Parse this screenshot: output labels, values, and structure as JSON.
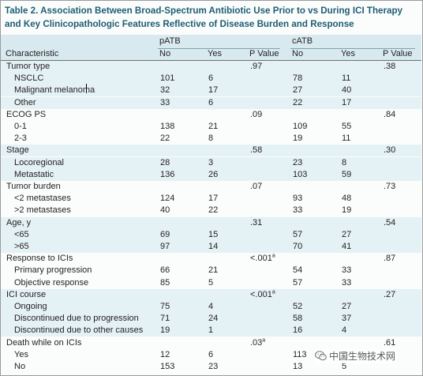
{
  "title_line1": "Table 2. Association Between Broad-Spectrum Antibiotic Use Prior to vs During ICI Therapy",
  "title_line2": "and Key Clinicopathologic Features Reflective of Disease Burden and Response",
  "groups": {
    "patb": "pATB",
    "catb": "cATB"
  },
  "columns": {
    "characteristic": "Characteristic",
    "patb_no": "No",
    "patb_yes": "Yes",
    "patb_p": "P Value",
    "catb_no": "No",
    "catb_yes": "Yes",
    "catb_p": "P Value"
  },
  "rows": [
    {
      "label": "Tumor type",
      "level": 0,
      "pno": "",
      "pyes": "",
      "pp": ".97",
      "pp_sup": "",
      "cno": "",
      "cyes": "",
      "cp": ".38",
      "cp_sup": ""
    },
    {
      "label": "NSCLC",
      "level": 1,
      "pno": "101",
      "pyes": "6",
      "pp": "",
      "pp_sup": "",
      "cno": "78",
      "cyes": "11",
      "cp": "",
      "cp_sup": ""
    },
    {
      "label": "Malignant melanoma",
      "level": 1,
      "pno": "32",
      "pyes": "17",
      "pp": "",
      "pp_sup": "",
      "cno": "27",
      "cyes": "40",
      "cp": "",
      "cp_sup": ""
    },
    {
      "label": "Other",
      "level": 1,
      "pno": "33",
      "pyes": "6",
      "pp": "",
      "pp_sup": "",
      "cno": "22",
      "cyes": "17",
      "cp": "",
      "cp_sup": ""
    },
    {
      "label": "ECOG PS",
      "level": 0,
      "pno": "",
      "pyes": "",
      "pp": ".09",
      "pp_sup": "",
      "cno": "",
      "cyes": "",
      "cp": ".84",
      "cp_sup": ""
    },
    {
      "label": "0-1",
      "level": 1,
      "pno": "138",
      "pyes": "21",
      "pp": "",
      "pp_sup": "",
      "cno": "109",
      "cyes": "55",
      "cp": "",
      "cp_sup": ""
    },
    {
      "label": "2-3",
      "level": 1,
      "pno": "22",
      "pyes": "8",
      "pp": "",
      "pp_sup": "",
      "cno": "19",
      "cyes": "11",
      "cp": "",
      "cp_sup": ""
    },
    {
      "label": "Stage",
      "level": 0,
      "pno": "",
      "pyes": "",
      "pp": ".58",
      "pp_sup": "",
      "cno": "",
      "cyes": "",
      "cp": ".30",
      "cp_sup": ""
    },
    {
      "label": "Locoregional",
      "level": 1,
      "pno": "28",
      "pyes": "3",
      "pp": "",
      "pp_sup": "",
      "cno": "23",
      "cyes": "8",
      "cp": "",
      "cp_sup": ""
    },
    {
      "label": "Metastatic",
      "level": 1,
      "pno": "136",
      "pyes": "26",
      "pp": "",
      "pp_sup": "",
      "cno": "103",
      "cyes": "59",
      "cp": "",
      "cp_sup": ""
    },
    {
      "label": "Tumor burden",
      "level": 0,
      "pno": "",
      "pyes": "",
      "pp": ".07",
      "pp_sup": "",
      "cno": "",
      "cyes": "",
      "cp": ".73",
      "cp_sup": ""
    },
    {
      "label": "<2 metastases",
      "level": 1,
      "pno": "124",
      "pyes": "17",
      "pp": "",
      "pp_sup": "",
      "cno": "93",
      "cyes": "48",
      "cp": "",
      "cp_sup": ""
    },
    {
      "label": ">2 metastases",
      "level": 1,
      "pno": "40",
      "pyes": "22",
      "pp": "",
      "pp_sup": "",
      "cno": "33",
      "cyes": "19",
      "cp": "",
      "cp_sup": ""
    },
    {
      "label": "Age, y",
      "level": 0,
      "pno": "",
      "pyes": "",
      "pp": ".31",
      "pp_sup": "",
      "cno": "",
      "cyes": "",
      "cp": ".54",
      "cp_sup": ""
    },
    {
      "label": "<65",
      "level": 1,
      "pno": "69",
      "pyes": "15",
      "pp": "",
      "pp_sup": "",
      "cno": "57",
      "cyes": "27",
      "cp": "",
      "cp_sup": ""
    },
    {
      "label": ">65",
      "level": 1,
      "pno": "97",
      "pyes": "14",
      "pp": "",
      "pp_sup": "",
      "cno": "70",
      "cyes": "41",
      "cp": "",
      "cp_sup": ""
    },
    {
      "label": "Response to ICIs",
      "level": 0,
      "pno": "",
      "pyes": "",
      "pp": "<.001",
      "pp_sup": "a",
      "cno": "",
      "cyes": "",
      "cp": ".87",
      "cp_sup": ""
    },
    {
      "label": "Primary progression",
      "level": 1,
      "pno": "66",
      "pyes": "21",
      "pp": "",
      "pp_sup": "",
      "cno": "54",
      "cyes": "33",
      "cp": "",
      "cp_sup": ""
    },
    {
      "label": "Objective response",
      "level": 1,
      "pno": "85",
      "pyes": "5",
      "pp": "",
      "pp_sup": "",
      "cno": "57",
      "cyes": "33",
      "cp": "",
      "cp_sup": ""
    },
    {
      "label": "ICI course",
      "level": 0,
      "pno": "",
      "pyes": "",
      "pp": "<.001",
      "pp_sup": "a",
      "cno": "",
      "cyes": "",
      "cp": ".27",
      "cp_sup": ""
    },
    {
      "label": "Ongoing",
      "level": 1,
      "pno": "75",
      "pyes": "4",
      "pp": "",
      "pp_sup": "",
      "cno": "52",
      "cyes": "27",
      "cp": "",
      "cp_sup": ""
    },
    {
      "label": "Discontinued due to progression",
      "level": 1,
      "pno": "71",
      "pyes": "24",
      "pp": "",
      "pp_sup": "",
      "cno": "58",
      "cyes": "37",
      "cp": "",
      "cp_sup": ""
    },
    {
      "label": "Discontinued due to other causes",
      "level": 1,
      "pno": "19",
      "pyes": "1",
      "pp": "",
      "pp_sup": "",
      "cno": "16",
      "cyes": "4",
      "cp": "",
      "cp_sup": ""
    },
    {
      "label": "Death while on ICIs",
      "level": 0,
      "pno": "",
      "pyes": "",
      "pp": ".03",
      "pp_sup": "a",
      "cno": "",
      "cyes": "",
      "cp": ".61",
      "cp_sup": ""
    },
    {
      "label": "Yes",
      "level": 1,
      "pno": "12",
      "pyes": "6",
      "pp": "",
      "pp_sup": "",
      "cno": "113",
      "cyes": "3",
      "cp": "",
      "cp_sup": ""
    },
    {
      "label": "No",
      "level": 1,
      "pno": "153",
      "pyes": "23",
      "pp": "",
      "pp_sup": "",
      "cno": "13",
      "cyes": "5",
      "cp": "",
      "cp_sup": ""
    }
  ],
  "watermark": {
    "text": "中国生物技术网",
    "icon": "wechat-icon"
  }
}
